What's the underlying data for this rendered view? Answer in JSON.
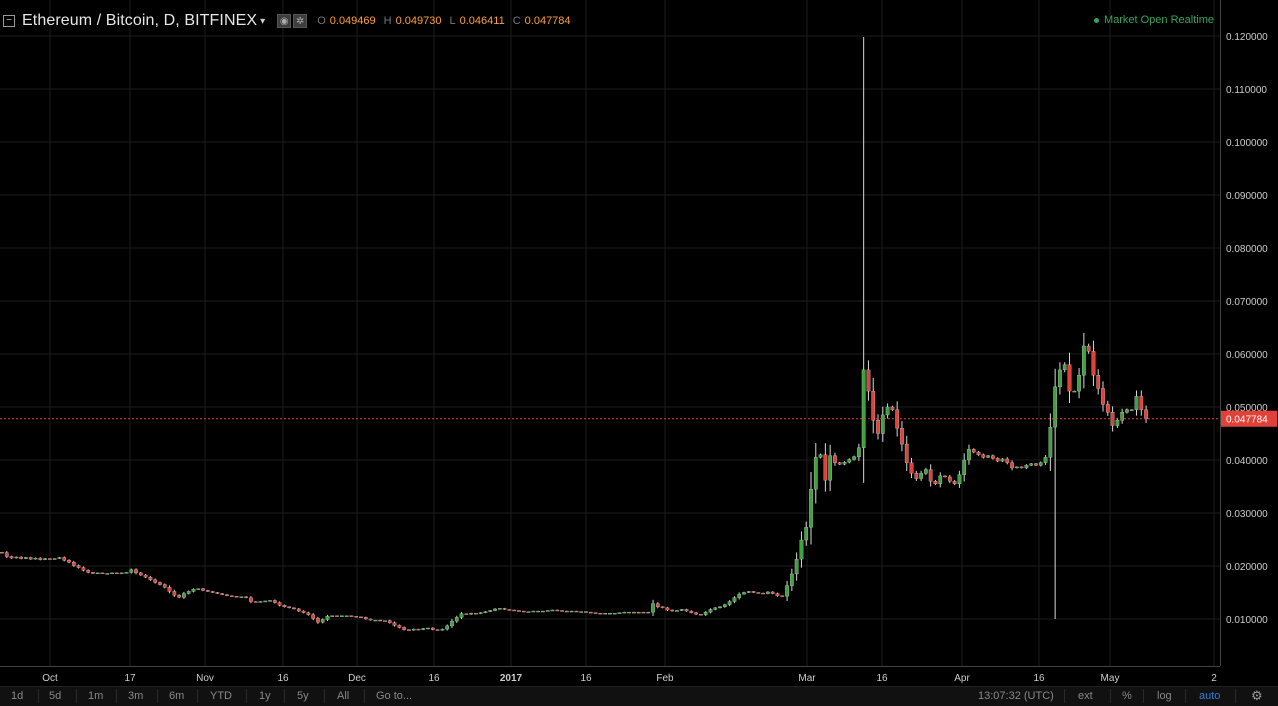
{
  "header": {
    "symbol": "Ethereum / Bitcoin, D, BITFINEX",
    "collapse_glyph": "−",
    "caret_glyph": "▾",
    "ohlc": [
      {
        "key": "O",
        "value": "0.049469"
      },
      {
        "key": "H",
        "value": "0.049730"
      },
      {
        "key": "L",
        "value": "0.046411"
      },
      {
        "key": "C",
        "value": "0.047784"
      }
    ],
    "market_status": "Market Open  Realtime",
    "status_color": "#3aa35a"
  },
  "colors": {
    "up": "#3ea23e",
    "down": "#e0423a",
    "grid": "#1c1c1c",
    "price_line": "#e0423a",
    "label_text": "#cccccc"
  },
  "price_axis": {
    "ticks": [
      "0.120000",
      "0.110000",
      "0.100000",
      "0.090000",
      "0.080000",
      "0.070000",
      "0.060000",
      "0.050000",
      "0.040000",
      "0.030000",
      "0.020000",
      "0.010000"
    ],
    "tick_values": [
      0.12,
      0.11,
      0.1,
      0.09,
      0.08,
      0.07,
      0.06,
      0.05,
      0.04,
      0.03,
      0.02,
      0.01
    ],
    "last_price": "0.047784",
    "last_value": 0.047784
  },
  "time_axis": {
    "labels": [
      {
        "text": "Oct",
        "bold": false
      },
      {
        "text": "17",
        "bold": false
      },
      {
        "text": "Nov",
        "bold": false
      },
      {
        "text": "16",
        "bold": false
      },
      {
        "text": "Dec",
        "bold": false
      },
      {
        "text": "16",
        "bold": false
      },
      {
        "text": "2017",
        "bold": true
      },
      {
        "text": "16",
        "bold": false
      },
      {
        "text": "Feb",
        "bold": false
      },
      {
        "text": "Mar",
        "bold": false
      },
      {
        "text": "16",
        "bold": false
      },
      {
        "text": "Apr",
        "bold": false
      },
      {
        "text": "16",
        "bold": false
      },
      {
        "text": "May",
        "bold": false
      },
      {
        "text": "2",
        "bold": false
      }
    ]
  },
  "chart_data": {
    "type": "candlestick",
    "title": "Ethereum / Bitcoin, D, BITFINEX",
    "interval": "D",
    "ylim": [
      0.0,
      0.124
    ],
    "y_ticks": [
      0.01,
      0.02,
      0.03,
      0.04,
      0.05,
      0.06,
      0.07,
      0.08,
      0.09,
      0.1,
      0.11,
      0.12
    ],
    "grid": true,
    "last_price": 0.047784,
    "series": [
      {
        "name": "ETHBTC",
        "daily_close": [
          0.0225,
          0.0218,
          0.0215,
          0.0217,
          0.0214,
          0.0216,
          0.0213,
          0.0215,
          0.0212,
          0.0214,
          0.0213,
          0.0214,
          0.0216,
          0.0211,
          0.0207,
          0.0201,
          0.0197,
          0.0192,
          0.0188,
          0.0186,
          0.0187,
          0.0186,
          0.0186,
          0.0187,
          0.0186,
          0.0187,
          0.0188,
          0.0193,
          0.0187,
          0.0183,
          0.0179,
          0.0174,
          0.0169,
          0.0165,
          0.016,
          0.0152,
          0.0145,
          0.0141,
          0.0148,
          0.0152,
          0.0156,
          0.0157,
          0.0154,
          0.0152,
          0.015,
          0.0148,
          0.0146,
          0.0144,
          0.0143,
          0.0142,
          0.0142,
          0.014,
          0.0133,
          0.0132,
          0.0133,
          0.0134,
          0.0135,
          0.0131,
          0.0126,
          0.0123,
          0.0121,
          0.0119,
          0.0115,
          0.0112,
          0.0108,
          0.0101,
          0.0094,
          0.0099,
          0.0105,
          0.0106,
          0.0105,
          0.0106,
          0.0106,
          0.0105,
          0.0104,
          0.0103,
          0.01,
          0.0098,
          0.0098,
          0.0097,
          0.0097,
          0.0093,
          0.0088,
          0.0084,
          0.008,
          0.0079,
          0.0081,
          0.008,
          0.0082,
          0.0083,
          0.008,
          0.0079,
          0.0081,
          0.0087,
          0.0096,
          0.0103,
          0.011,
          0.0109,
          0.0111,
          0.011,
          0.0112,
          0.0114,
          0.0116,
          0.0119,
          0.012,
          0.0118,
          0.0117,
          0.0116,
          0.0115,
          0.0114,
          0.0114,
          0.0115,
          0.0115,
          0.0115,
          0.0116,
          0.0117,
          0.0116,
          0.0115,
          0.0114,
          0.0115,
          0.0114,
          0.0114,
          0.0113,
          0.0112,
          0.0111,
          0.011,
          0.0111,
          0.0111,
          0.0111,
          0.0112,
          0.0113,
          0.0113,
          0.0112,
          0.0113,
          0.0112,
          0.0113,
          0.0129,
          0.0123,
          0.0121,
          0.0117,
          0.0115,
          0.0116,
          0.0118,
          0.0115,
          0.0112,
          0.0109,
          0.0108,
          0.0113,
          0.0118,
          0.0121,
          0.0123,
          0.0127,
          0.0133,
          0.014,
          0.0147,
          0.015,
          0.0152,
          0.015,
          0.0149,
          0.0148,
          0.0151,
          0.0148,
          0.0144,
          0.0143,
          0.0163,
          0.0185,
          0.0213,
          0.0249,
          0.0273,
          0.0345,
          0.0405,
          0.041,
          0.0362,
          0.0408,
          0.0395,
          0.0392,
          0.0396,
          0.0401,
          0.0406,
          0.0423,
          0.057,
          0.053,
          0.0475,
          0.045,
          0.0485,
          0.05,
          0.0495,
          0.046,
          0.043,
          0.0395,
          0.0375,
          0.0365,
          0.0375,
          0.0382,
          0.036,
          0.0355,
          0.037,
          0.0368,
          0.036,
          0.0355,
          0.0372,
          0.04,
          0.042,
          0.0415,
          0.041,
          0.0405,
          0.0408,
          0.0403,
          0.0398,
          0.0402,
          0.0395,
          0.0385,
          0.0387,
          0.0385,
          0.039,
          0.0393,
          0.039,
          0.0395,
          0.0405,
          0.0462,
          0.0538,
          0.057,
          0.058,
          0.053,
          0.053,
          0.056,
          0.0615,
          0.0605,
          0.056,
          0.0535,
          0.0505,
          0.049,
          0.0465,
          0.0475,
          0.049,
          0.0495,
          0.0495,
          0.052,
          0.0495,
          0.047784
        ]
      }
    ]
  },
  "bottom_bar": {
    "ranges": [
      "1d",
      "5d",
      "1m",
      "3m",
      "6m",
      "YTD",
      "1y",
      "5y",
      "All"
    ],
    "goto_label": "Go to...",
    "clock": "13:07:32 (UTC)",
    "options": [
      {
        "label": "ext",
        "active": false
      },
      {
        "label": "%",
        "active": false
      },
      {
        "label": "log",
        "active": false
      },
      {
        "label": "auto",
        "active": true
      }
    ],
    "settings_glyph": "⚙"
  }
}
